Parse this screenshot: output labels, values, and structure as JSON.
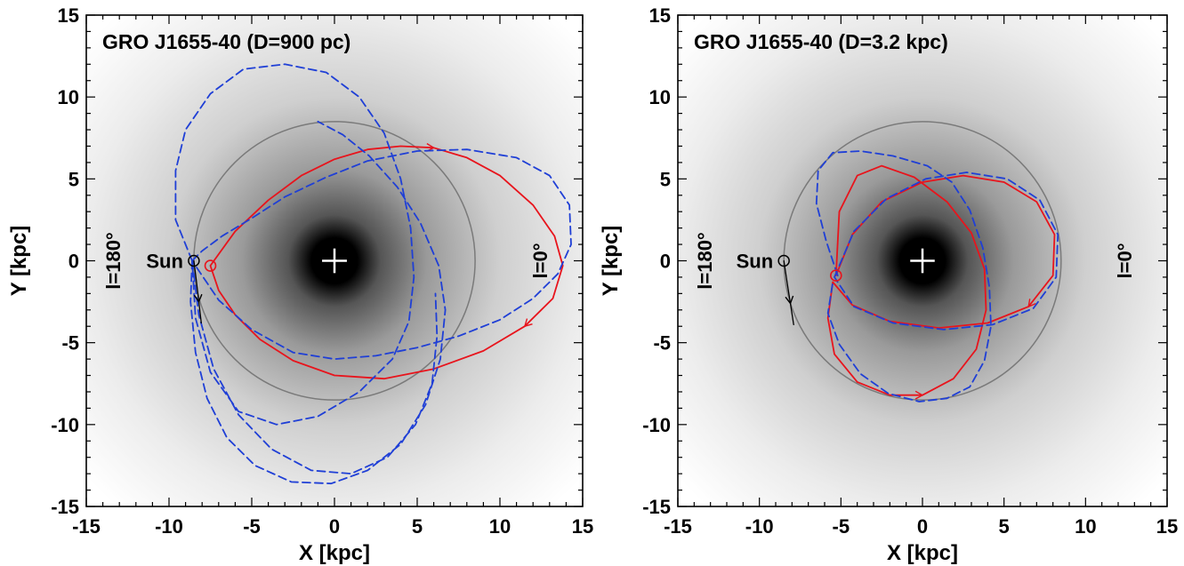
{
  "chart_data": [
    {
      "type": "line",
      "title": "GRO J1655-40  (D=900 pc)",
      "xlabel": "X [kpc]",
      "ylabel": "Y [kpc]",
      "xlim": [
        -15,
        15
      ],
      "ylim": [
        -15,
        15
      ],
      "xticks": [
        "-15",
        "-10",
        "-5",
        "0",
        "5",
        "10",
        "15"
      ],
      "yticks": [
        "-15",
        "-10",
        "-5",
        "0",
        "5",
        "10",
        "15"
      ],
      "solar_circle_radius": 8.5,
      "annotations": {
        "sun_label": "Sun",
        "left_longitude": "l=180°",
        "right_longitude": "l=0°"
      },
      "sun": {
        "x": -8.5,
        "y": 0
      },
      "source": {
        "x": -7.5,
        "y": -0.3
      },
      "colors": {
        "orbit": "#e8141c",
        "alternate_orbits": "#1f3fd6",
        "solar_circle": "#7a7a7a",
        "sun_track": "#000000"
      },
      "series": [
        {
          "style": "solid",
          "color": "#e8141c",
          "x": [
            -7.5,
            -6,
            -4,
            -2,
            0,
            2,
            4,
            6,
            8,
            10,
            12,
            13.3,
            13.8,
            13.2,
            11.5,
            9,
            6,
            3,
            0,
            -2.5,
            -4.5,
            -6,
            -7,
            -7.5
          ],
          "y": [
            -0.3,
            1.8,
            3.7,
            5.2,
            6.2,
            6.8,
            7.0,
            6.9,
            6.3,
            5.2,
            3.4,
            1.5,
            -0.3,
            -2.3,
            -4.0,
            -5.5,
            -6.6,
            -7.2,
            -7.0,
            -6.1,
            -4.8,
            -3.3,
            -1.8,
            -0.3
          ]
        },
        {
          "style": "dashed",
          "color": "#1f3fd6",
          "x": [
            -8.6,
            -9.6,
            -9.6,
            -9,
            -7.5,
            -5.5,
            -3,
            -0.5,
            1.5,
            3,
            4,
            4.6,
            4.8,
            4.5,
            3.5,
            1.5,
            -1,
            -3.5,
            -5.8,
            -7.5,
            -8.4,
            -8.6
          ],
          "y": [
            0,
            2.5,
            5.5,
            8,
            10.2,
            11.7,
            12,
            11.5,
            10,
            7.8,
            5,
            2,
            -1,
            -3.7,
            -6,
            -8,
            -9.5,
            -10,
            -9.2,
            -6.8,
            -3.5,
            0
          ]
        },
        {
          "style": "dashed",
          "color": "#1f3fd6",
          "x": [
            -8.6,
            -8,
            -6.8,
            -5,
            -3,
            -0.5,
            2,
            5,
            8,
            11,
            13,
            14.2,
            14.3,
            13.5,
            12,
            10,
            7.5,
            5,
            2.5,
            0,
            -2.5,
            -5,
            -7,
            -8.6
          ],
          "y": [
            0,
            0.6,
            1.5,
            2.6,
            3.9,
            5.1,
            6.1,
            6.7,
            6.8,
            6.3,
            5.2,
            3.4,
            1,
            -0.8,
            -2.3,
            -3.6,
            -4.6,
            -5.3,
            -5.8,
            -6.0,
            -5.6,
            -4.2,
            -2.4,
            0
          ]
        },
        {
          "style": "dashed",
          "color": "#1f3fd6",
          "x": [
            -8.6,
            -8.7,
            -8.4,
            -7.7,
            -6.5,
            -4.8,
            -2.6,
            -0.2,
            2,
            4,
            5.5,
            6.4,
            6.7,
            6.3,
            5.2,
            3.8,
            2.1,
            0.5,
            -1
          ],
          "y": [
            0,
            -2.5,
            -5.6,
            -8.4,
            -10.8,
            -12.5,
            -13.5,
            -13.6,
            -12.8,
            -11.2,
            -8.8,
            -6,
            -3,
            -0.3,
            2.3,
            4.5,
            6.4,
            7.7,
            8.5
          ]
        },
        {
          "style": "dashed",
          "color": "#1f3fd6",
          "x": [
            -8.6,
            -8.2,
            -7.3,
            -5.8,
            -3.8,
            -1.4,
            1,
            3.2,
            4.9,
            5.9,
            6.2,
            6.1
          ],
          "y": [
            0,
            -3.3,
            -6.6,
            -9.4,
            -11.5,
            -12.8,
            -13,
            -12,
            -10,
            -7.5,
            -4.6,
            -2
          ]
        },
        {
          "style": "solid",
          "color": "#000000",
          "x": [
            -8.5,
            -8.35,
            -8.2,
            -8.05
          ],
          "y": [
            0,
            -1.2,
            -2.5,
            -3.8
          ]
        }
      ]
    },
    {
      "type": "line",
      "title": "GRO J1655-40  (D=3.2 kpc)",
      "xlabel": "X [kpc]",
      "ylabel": "Y [kpc]",
      "xlim": [
        -15,
        15
      ],
      "ylim": [
        -15,
        15
      ],
      "xticks": [
        "-15",
        "-10",
        "-5",
        "0",
        "5",
        "10",
        "15"
      ],
      "yticks": [
        "-15",
        "-10",
        "-5",
        "0",
        "5",
        "10",
        "15"
      ],
      "solar_circle_radius": 8.5,
      "annotations": {
        "sun_label": "Sun",
        "left_longitude": "l=180°",
        "right_longitude": "l=0°"
      },
      "sun": {
        "x": -8.5,
        "y": 0
      },
      "source": {
        "x": -5.3,
        "y": -0.9
      },
      "colors": {
        "orbit": "#e8141c",
        "alternate_orbits": "#1f3fd6",
        "solar_circle": "#7a7a7a",
        "sun_track": "#000000"
      },
      "series": [
        {
          "style": "solid",
          "color": "#e8141c",
          "x": [
            -5.3,
            -4.3,
            -2.5,
            0,
            2.5,
            5,
            7,
            8.1,
            8,
            6.5,
            4,
            1,
            -2,
            -4.3,
            -5.5,
            -5.8,
            -5.4,
            -4,
            -2,
            0,
            1.9,
            3.3,
            3.9,
            3.8,
            3,
            1.5,
            -0.5,
            -2.5,
            -4,
            -5.1,
            -5.3
          ],
          "y": [
            -0.9,
            1.6,
            3.6,
            4.8,
            5.2,
            4.8,
            3.6,
            1.6,
            -0.9,
            -2.8,
            -3.8,
            -4.1,
            -3.7,
            -2.7,
            -1.3,
            -3.5,
            -5.7,
            -7.4,
            -8.2,
            -8.2,
            -7.2,
            -5.4,
            -3,
            -0.5,
            1.7,
            3.6,
            5.1,
            5.8,
            5.2,
            3,
            -0.9
          ]
        },
        {
          "style": "dashed",
          "color": "#1f3fd6",
          "x": [
            -5.2,
            -5.9,
            -6.5,
            -6.4,
            -5.5,
            -3.8,
            -1.8,
            0.3,
            1.8,
            2.9,
            3.7,
            4.1,
            4.2,
            3.8,
            2.9,
            1.5,
            -0.2,
            -2.1,
            -3.8,
            -5.1,
            -5.8,
            -5.5
          ],
          "y": [
            -0.9,
            1.2,
            3.5,
            5.5,
            6.6,
            6.7,
            6.4,
            5.8,
            4.8,
            3.1,
            0.8,
            -1.6,
            -4,
            -6.1,
            -7.7,
            -8.4,
            -8.6,
            -8.1,
            -6.9,
            -5.1,
            -3.2,
            -1.3
          ]
        },
        {
          "style": "dashed",
          "color": "#1f3fd6",
          "x": [
            -5.4,
            -4.2,
            -2.2,
            0.2,
            2.7,
            5.2,
            7.2,
            8.3,
            8.2,
            6.8,
            4.3,
            1.3,
            -1.8,
            -4.2,
            -5.4
          ],
          "y": [
            -1.0,
            1.8,
            3.8,
            5.0,
            5.4,
            5.0,
            3.7,
            1.6,
            -1.0,
            -2.9,
            -3.9,
            -4.2,
            -3.8,
            -2.8,
            -1.0
          ]
        },
        {
          "style": "solid",
          "color": "#000000",
          "x": [
            -8.5,
            -8.3,
            -8.1,
            -7.9
          ],
          "y": [
            0,
            -1.3,
            -2.6,
            -3.9
          ]
        }
      ]
    }
  ]
}
